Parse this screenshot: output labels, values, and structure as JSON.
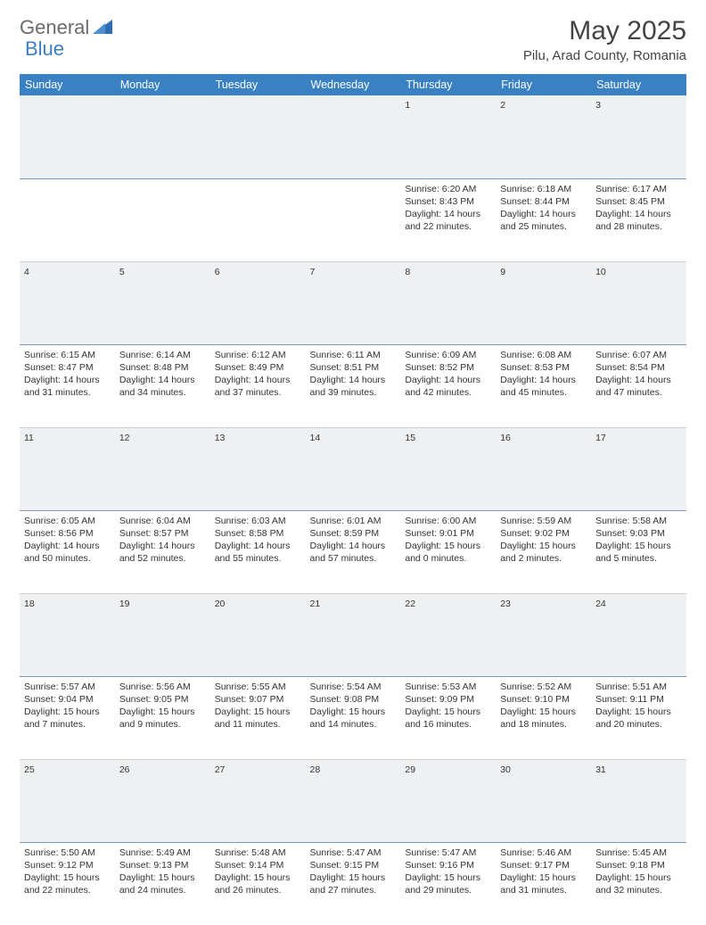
{
  "brand": {
    "part1": "General",
    "part2": "Blue"
  },
  "title": "May 2025",
  "location": "Pilu, Arad County, Romania",
  "colors": {
    "header_bg": "#3a81c4",
    "header_text": "#ffffff",
    "daynum_bg": "#eef0f2",
    "daynum_border": "#7a98b8",
    "brand_gray": "#6b6b6b",
    "brand_blue": "#3a7fc4"
  },
  "weekdays": [
    "Sunday",
    "Monday",
    "Tuesday",
    "Wednesday",
    "Thursday",
    "Friday",
    "Saturday"
  ],
  "weeks": [
    {
      "nums": [
        "",
        "",
        "",
        "",
        "1",
        "2",
        "3"
      ],
      "cells": [
        null,
        null,
        null,
        null,
        {
          "sr": "Sunrise: 6:20 AM",
          "ss": "Sunset: 8:43 PM",
          "d1": "Daylight: 14 hours",
          "d2": "and 22 minutes."
        },
        {
          "sr": "Sunrise: 6:18 AM",
          "ss": "Sunset: 8:44 PM",
          "d1": "Daylight: 14 hours",
          "d2": "and 25 minutes."
        },
        {
          "sr": "Sunrise: 6:17 AM",
          "ss": "Sunset: 8:45 PM",
          "d1": "Daylight: 14 hours",
          "d2": "and 28 minutes."
        }
      ]
    },
    {
      "nums": [
        "4",
        "5",
        "6",
        "7",
        "8",
        "9",
        "10"
      ],
      "cells": [
        {
          "sr": "Sunrise: 6:15 AM",
          "ss": "Sunset: 8:47 PM",
          "d1": "Daylight: 14 hours",
          "d2": "and 31 minutes."
        },
        {
          "sr": "Sunrise: 6:14 AM",
          "ss": "Sunset: 8:48 PM",
          "d1": "Daylight: 14 hours",
          "d2": "and 34 minutes."
        },
        {
          "sr": "Sunrise: 6:12 AM",
          "ss": "Sunset: 8:49 PM",
          "d1": "Daylight: 14 hours",
          "d2": "and 37 minutes."
        },
        {
          "sr": "Sunrise: 6:11 AM",
          "ss": "Sunset: 8:51 PM",
          "d1": "Daylight: 14 hours",
          "d2": "and 39 minutes."
        },
        {
          "sr": "Sunrise: 6:09 AM",
          "ss": "Sunset: 8:52 PM",
          "d1": "Daylight: 14 hours",
          "d2": "and 42 minutes."
        },
        {
          "sr": "Sunrise: 6:08 AM",
          "ss": "Sunset: 8:53 PM",
          "d1": "Daylight: 14 hours",
          "d2": "and 45 minutes."
        },
        {
          "sr": "Sunrise: 6:07 AM",
          "ss": "Sunset: 8:54 PM",
          "d1": "Daylight: 14 hours",
          "d2": "and 47 minutes."
        }
      ]
    },
    {
      "nums": [
        "11",
        "12",
        "13",
        "14",
        "15",
        "16",
        "17"
      ],
      "cells": [
        {
          "sr": "Sunrise: 6:05 AM",
          "ss": "Sunset: 8:56 PM",
          "d1": "Daylight: 14 hours",
          "d2": "and 50 minutes."
        },
        {
          "sr": "Sunrise: 6:04 AM",
          "ss": "Sunset: 8:57 PM",
          "d1": "Daylight: 14 hours",
          "d2": "and 52 minutes."
        },
        {
          "sr": "Sunrise: 6:03 AM",
          "ss": "Sunset: 8:58 PM",
          "d1": "Daylight: 14 hours",
          "d2": "and 55 minutes."
        },
        {
          "sr": "Sunrise: 6:01 AM",
          "ss": "Sunset: 8:59 PM",
          "d1": "Daylight: 14 hours",
          "d2": "and 57 minutes."
        },
        {
          "sr": "Sunrise: 6:00 AM",
          "ss": "Sunset: 9:01 PM",
          "d1": "Daylight: 15 hours",
          "d2": "and 0 minutes."
        },
        {
          "sr": "Sunrise: 5:59 AM",
          "ss": "Sunset: 9:02 PM",
          "d1": "Daylight: 15 hours",
          "d2": "and 2 minutes."
        },
        {
          "sr": "Sunrise: 5:58 AM",
          "ss": "Sunset: 9:03 PM",
          "d1": "Daylight: 15 hours",
          "d2": "and 5 minutes."
        }
      ]
    },
    {
      "nums": [
        "18",
        "19",
        "20",
        "21",
        "22",
        "23",
        "24"
      ],
      "cells": [
        {
          "sr": "Sunrise: 5:57 AM",
          "ss": "Sunset: 9:04 PM",
          "d1": "Daylight: 15 hours",
          "d2": "and 7 minutes."
        },
        {
          "sr": "Sunrise: 5:56 AM",
          "ss": "Sunset: 9:05 PM",
          "d1": "Daylight: 15 hours",
          "d2": "and 9 minutes."
        },
        {
          "sr": "Sunrise: 5:55 AM",
          "ss": "Sunset: 9:07 PM",
          "d1": "Daylight: 15 hours",
          "d2": "and 11 minutes."
        },
        {
          "sr": "Sunrise: 5:54 AM",
          "ss": "Sunset: 9:08 PM",
          "d1": "Daylight: 15 hours",
          "d2": "and 14 minutes."
        },
        {
          "sr": "Sunrise: 5:53 AM",
          "ss": "Sunset: 9:09 PM",
          "d1": "Daylight: 15 hours",
          "d2": "and 16 minutes."
        },
        {
          "sr": "Sunrise: 5:52 AM",
          "ss": "Sunset: 9:10 PM",
          "d1": "Daylight: 15 hours",
          "d2": "and 18 minutes."
        },
        {
          "sr": "Sunrise: 5:51 AM",
          "ss": "Sunset: 9:11 PM",
          "d1": "Daylight: 15 hours",
          "d2": "and 20 minutes."
        }
      ]
    },
    {
      "nums": [
        "25",
        "26",
        "27",
        "28",
        "29",
        "30",
        "31"
      ],
      "cells": [
        {
          "sr": "Sunrise: 5:50 AM",
          "ss": "Sunset: 9:12 PM",
          "d1": "Daylight: 15 hours",
          "d2": "and 22 minutes."
        },
        {
          "sr": "Sunrise: 5:49 AM",
          "ss": "Sunset: 9:13 PM",
          "d1": "Daylight: 15 hours",
          "d2": "and 24 minutes."
        },
        {
          "sr": "Sunrise: 5:48 AM",
          "ss": "Sunset: 9:14 PM",
          "d1": "Daylight: 15 hours",
          "d2": "and 26 minutes."
        },
        {
          "sr": "Sunrise: 5:47 AM",
          "ss": "Sunset: 9:15 PM",
          "d1": "Daylight: 15 hours",
          "d2": "and 27 minutes."
        },
        {
          "sr": "Sunrise: 5:47 AM",
          "ss": "Sunset: 9:16 PM",
          "d1": "Daylight: 15 hours",
          "d2": "and 29 minutes."
        },
        {
          "sr": "Sunrise: 5:46 AM",
          "ss": "Sunset: 9:17 PM",
          "d1": "Daylight: 15 hours",
          "d2": "and 31 minutes."
        },
        {
          "sr": "Sunrise: 5:45 AM",
          "ss": "Sunset: 9:18 PM",
          "d1": "Daylight: 15 hours",
          "d2": "and 32 minutes."
        }
      ]
    }
  ]
}
